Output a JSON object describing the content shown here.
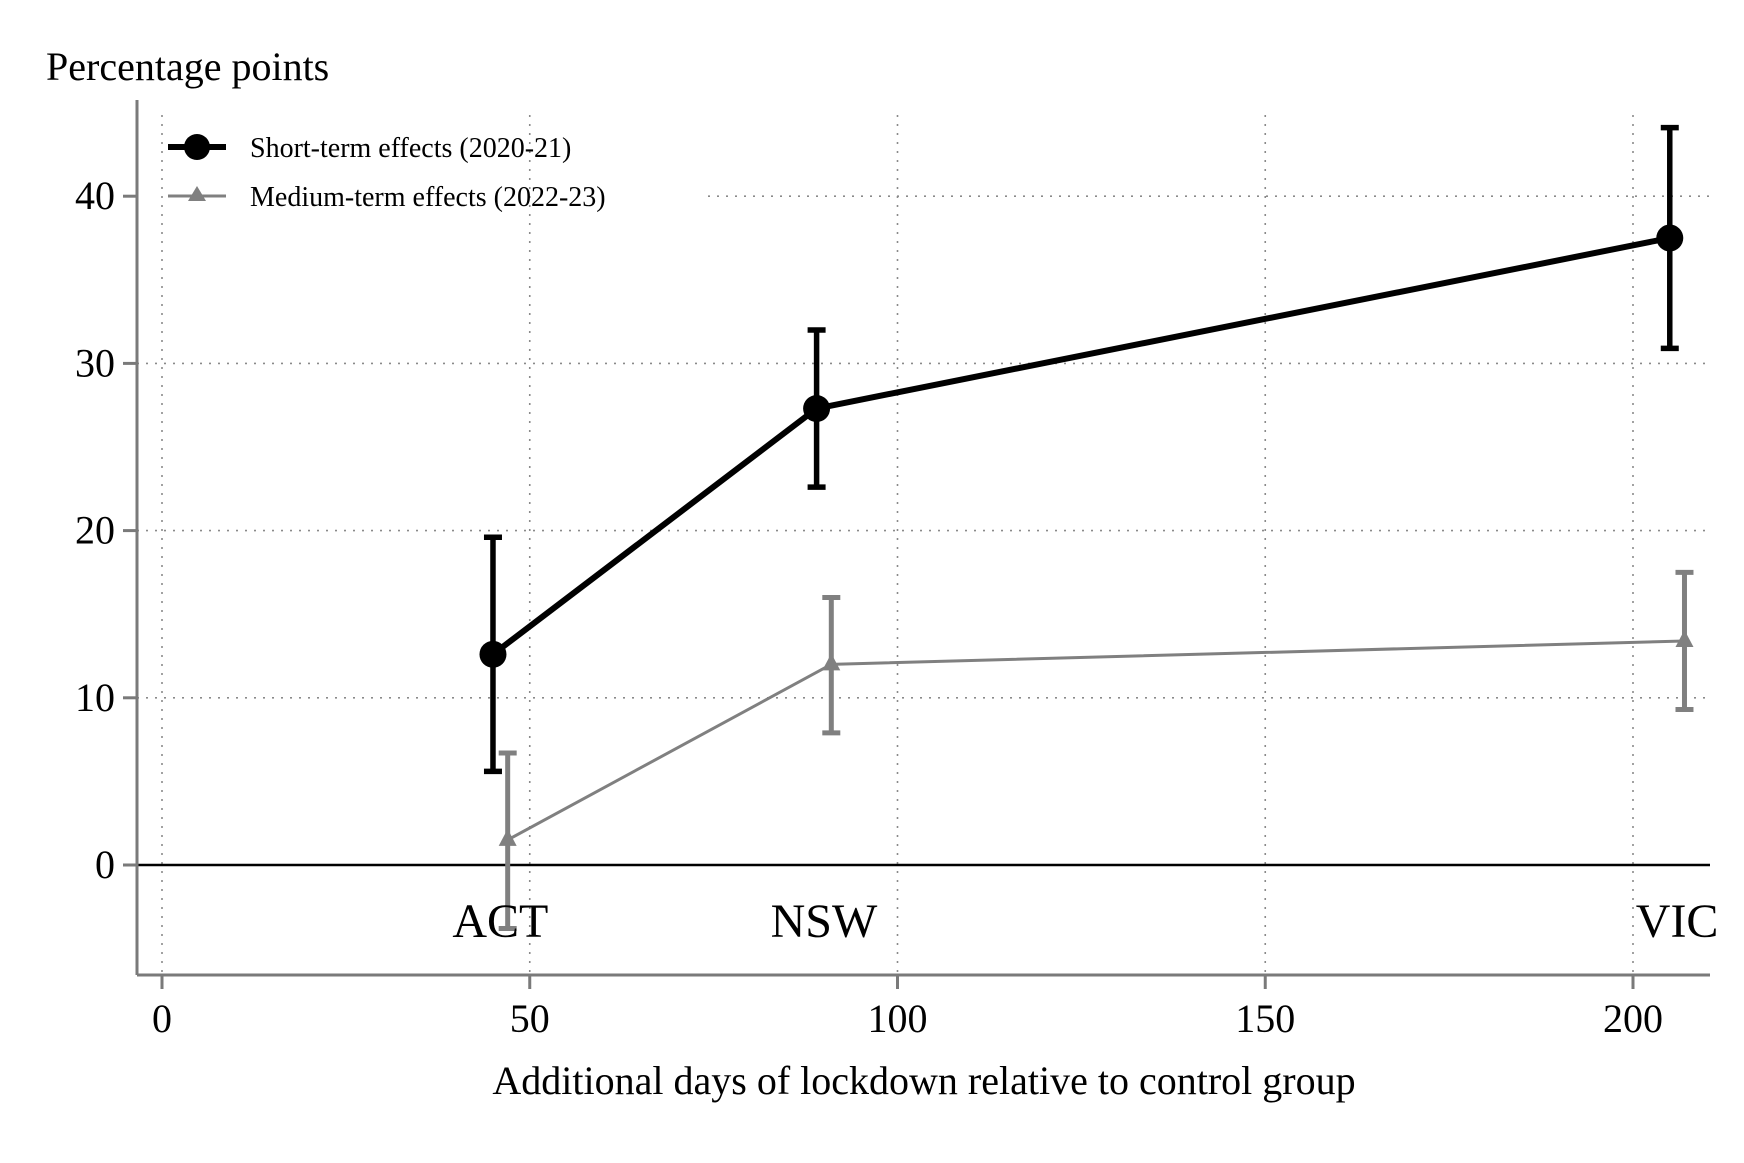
{
  "chart_data": {
    "type": "line",
    "title": "",
    "ylabel": "Percentage points",
    "xlabel": "Additional days of lockdown relative to control group",
    "xlim": [
      -3.5,
      207.5
    ],
    "ylim": [
      -6.5,
      45.5
    ],
    "xticks": [
      0,
      50,
      100,
      150,
      200
    ],
    "yticks": [
      0,
      10,
      20,
      30,
      40
    ],
    "grid": true,
    "legend_position": "top-left",
    "series": [
      {
        "name": "Short-term effects (2020-21)",
        "color": "#000000",
        "marker": "circle",
        "points": [
          {
            "x": 45,
            "y": 12.6,
            "lo": 5.6,
            "hi": 19.6
          },
          {
            "x": 89,
            "y": 27.3,
            "lo": 22.6,
            "hi": 32.0
          },
          {
            "x": 205,
            "y": 37.5,
            "lo": 30.9,
            "hi": 44.1
          }
        ]
      },
      {
        "name": "Medium-term effects (2022-23)",
        "color": "#808080",
        "marker": "triangle",
        "points": [
          {
            "x": 47,
            "y": 1.5,
            "lo": -3.8,
            "hi": 6.7
          },
          {
            "x": 91,
            "y": 12.0,
            "lo": 7.9,
            "hi": 16.0
          },
          {
            "x": 207,
            "y": 13.4,
            "lo": 9.3,
            "hi": 17.5
          }
        ]
      }
    ],
    "annotations": [
      {
        "text": "ACT",
        "x": 46,
        "y": -3.3
      },
      {
        "text": "NSW",
        "x": 90,
        "y": -3.3
      },
      {
        "text": "VIC",
        "x": 206,
        "y": -3.3
      }
    ]
  }
}
